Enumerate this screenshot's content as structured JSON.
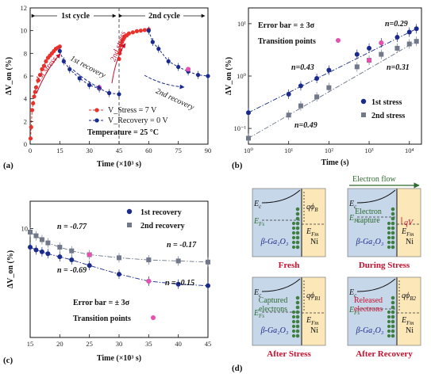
{
  "chart_data": [
    {
      "panel": "(a)",
      "type": "scatter",
      "xlabel": "Time (×10³ s)",
      "ylabel": "ΔV_on (%)",
      "xlim": [
        0,
        90
      ],
      "ylim": [
        0,
        12
      ],
      "xticks": [
        "0",
        "15",
        "30",
        "45",
        "60",
        "75",
        "90"
      ],
      "yticks": [
        "0",
        "2",
        "4",
        "6",
        "8",
        "10",
        "12"
      ],
      "cycles": [
        "1st cycle",
        "2nd cycle"
      ],
      "annotations": [
        "1st stress",
        "1st recovery",
        "2nd stress",
        "2nd recovery"
      ],
      "legend": {
        "stress": "V_Stress = 7 V",
        "recovery": "V_Recovery = 0 V"
      },
      "temperature": "Temperature = 25 °C",
      "series": [
        {
          "role": "stress",
          "color": "#e8322b",
          "x": [
            0.2,
            0.5,
            1,
            1.5,
            2,
            2.5,
            3,
            4,
            5,
            6,
            7,
            8,
            9,
            10,
            11,
            12,
            13,
            14,
            15
          ],
          "y": [
            0.5,
            1.5,
            3.0,
            3.6,
            4.2,
            4.6,
            5.0,
            5.6,
            6.1,
            6.6,
            6.9,
            7.3,
            7.6,
            7.8,
            8.0,
            8.2,
            8.4,
            8.5,
            8.6
          ]
        },
        {
          "role": "stress",
          "color": "#e8322b",
          "x": [
            45,
            45.3,
            45.6,
            46,
            46.5,
            47,
            47.5,
            48,
            49,
            50,
            52,
            54,
            56,
            58,
            60
          ],
          "y": [
            7.5,
            8.0,
            8.3,
            8.7,
            9.0,
            9.2,
            9.35,
            9.5,
            9.6,
            9.75,
            9.85,
            9.95,
            10.0,
            10.05,
            10.1
          ]
        },
        {
          "role": "recovery",
          "color": "#1a2a8c",
          "x": [
            15,
            17,
            20,
            25,
            30,
            35,
            40,
            45
          ],
          "y": [
            8.2,
            7.3,
            6.6,
            5.8,
            5.2,
            4.9,
            4.5,
            4.4
          ]
        },
        {
          "role": "recovery",
          "color": "#1a2a8c",
          "x": [
            60,
            62,
            65,
            70,
            75,
            80,
            85,
            90
          ],
          "y": [
            10.0,
            9.0,
            8.4,
            7.3,
            6.8,
            6.4,
            6.1,
            6.0
          ]
        }
      ],
      "transition_points": [
        {
          "x": 35,
          "y": 5.0
        },
        {
          "x": 80,
          "y": 6.6
        }
      ]
    },
    {
      "panel": "(b)",
      "type": "scatter",
      "scale": "log-log",
      "xlabel": "Time (s)",
      "ylabel": "ΔV_on (%)",
      "xlim": [
        1,
        20000
      ],
      "ylim": [
        0.05,
        20
      ],
      "xticks": [
        "10⁰",
        "10¹",
        "10²",
        "10³",
        "10⁴"
      ],
      "yticks": [
        "10⁻¹",
        "10⁰",
        "10¹"
      ],
      "error_bar_text": "Error bar = ± 3σ",
      "transition_text": "Transition points",
      "legend": [
        "1st stress",
        "2nd stress"
      ],
      "slopes": [
        "n=0.43",
        "n=0.29",
        "n=0.49",
        "n=0.31"
      ],
      "series": [
        {
          "name": "1st stress",
          "marker": "circle",
          "color": "#1a2a8c",
          "x": [
            1,
            10,
            20,
            50,
            100,
            500,
            1000,
            2000,
            5000,
            10000,
            15000
          ],
          "y": [
            0.2,
            0.45,
            0.65,
            0.9,
            1.3,
            2.6,
            3.4,
            4.3,
            5.5,
            6.9,
            8.0
          ]
        },
        {
          "name": "2nd stress",
          "marker": "square",
          "color": "#70788a",
          "x": [
            1,
            10,
            20,
            50,
            100,
            500,
            1000,
            2000,
            5000,
            10000,
            15000
          ],
          "y": [
            0.065,
            0.18,
            0.27,
            0.4,
            0.6,
            1.5,
            2.0,
            2.6,
            3.4,
            4.1,
            4.6
          ]
        }
      ],
      "transition_points": [
        {
          "x": 2000,
          "y": 4.3
        },
        {
          "x": 1000,
          "y": 2.0
        }
      ]
    },
    {
      "panel": "(c)",
      "type": "scatter",
      "scale": "semilog-y",
      "xlabel": "Time (×10³ s)",
      "ylabel": "ΔV_on (%)",
      "xlim": [
        15,
        45
      ],
      "ylim": [
        2,
        15
      ],
      "xticks": [
        "15",
        "20",
        "25",
        "30",
        "35",
        "40",
        "45"
      ],
      "yticks": [
        "10"
      ],
      "error_bar_text": "Error bar = ± 3σ",
      "transition_text": "Transition points",
      "legend": [
        "1st recovery",
        "2nd recovery"
      ],
      "slopes": [
        "n = -0.77",
        "n = -0.17",
        "n = -0.69",
        "n = -0.15"
      ],
      "series": [
        {
          "name": "1st recovery",
          "marker": "circle",
          "color": "#1a2a8c",
          "x": [
            15,
            16,
            17,
            18,
            20,
            22,
            25,
            30,
            35,
            40,
            45
          ],
          "y": [
            7.6,
            7.3,
            7.1,
            6.9,
            6.6,
            6.3,
            5.8,
            5.1,
            4.6,
            4.4,
            4.3
          ]
        },
        {
          "name": "2nd recovery",
          "marker": "square",
          "color": "#70788a",
          "x": [
            15,
            16,
            17,
            18,
            20,
            22,
            25,
            30,
            35,
            40,
            45
          ],
          "y": [
            9.5,
            9.0,
            8.5,
            8.1,
            7.6,
            7.2,
            6.8,
            6.5,
            6.3,
            6.2,
            6.1
          ]
        }
      ],
      "transition_points": [
        {
          "x": 25,
          "y": 6.8
        },
        {
          "x": 35,
          "y": 4.6
        }
      ]
    }
  ],
  "panel_d": {
    "label": "(d)",
    "top_arrow": "Electron flow",
    "boxes": [
      {
        "caption": "Fresh",
        "ec": "E",
        "ec_sub": "c",
        "ef": "E",
        "ef_sub": "Fs",
        "efm": "E",
        "efm_sub": "Fm",
        "phi": "qϕ",
        "phi_sub": "B",
        "material": "β-Ga₂O₃",
        "metal": "Ni"
      },
      {
        "caption": "During Stress",
        "ec": "E",
        "ec_sub": "c",
        "ef": "E",
        "ef_sub": "Fs",
        "efm": "E",
        "efm_sub": "Fm",
        "extra": [
          "Electron",
          "capture"
        ],
        "qv": "qV",
        "material": "β-Ga₂O₃",
        "metal": "Ni"
      },
      {
        "caption": "After Stress",
        "ec": "E",
        "ec_sub": "c",
        "ef": "E",
        "ef_sub": "Fs",
        "efm": "E",
        "efm_sub": "Fm",
        "phi": "qϕ",
        "phi_sub": "B1",
        "extra": [
          "Captured",
          "electrons"
        ],
        "material": "β-Ga₂O₃",
        "metal": "Ni"
      },
      {
        "caption": "After Recovery",
        "ec": "E",
        "ec_sub": "c",
        "ef": "E",
        "ef_sub": "Fs",
        "efm": "E",
        "efm_sub": "Fm",
        "phi": "qϕ",
        "phi_sub": "B2",
        "extra": [
          "Released",
          "electrons"
        ],
        "material": "β-Ga₂O₃",
        "metal": "Ni"
      }
    ]
  }
}
